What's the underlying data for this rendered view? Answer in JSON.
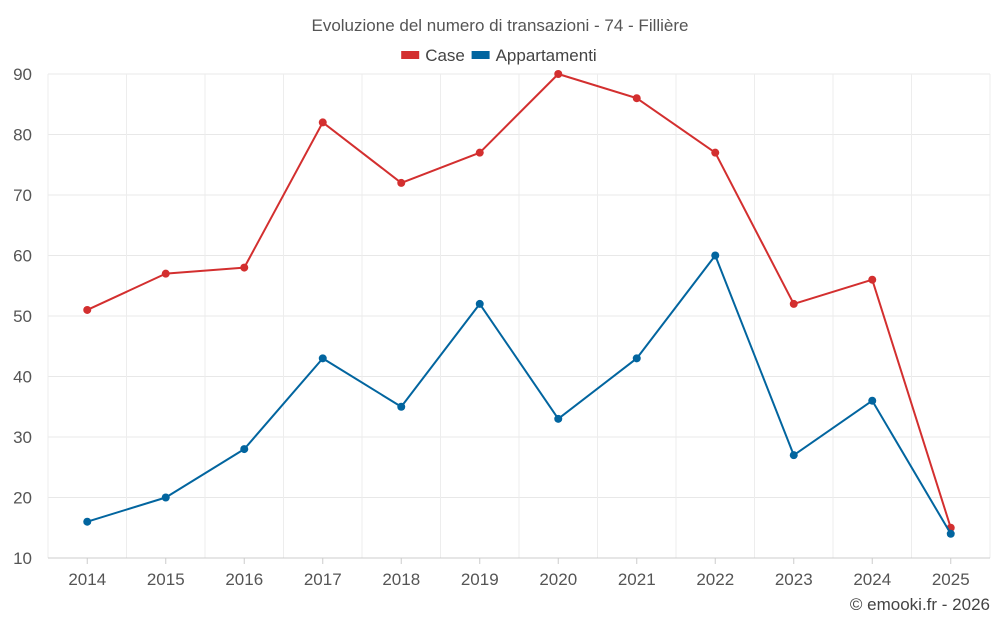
{
  "chart_data": {
    "type": "line",
    "title": "Evoluzione del numero di transazioni - 74 - Fillière",
    "xlabel": "",
    "ylabel": "",
    "categories": [
      "2014",
      "2015",
      "2016",
      "2017",
      "2018",
      "2019",
      "2020",
      "2021",
      "2022",
      "2023",
      "2024",
      "2025"
    ],
    "ylim": [
      10,
      90
    ],
    "yticks": [
      10,
      20,
      30,
      40,
      50,
      60,
      70,
      80,
      90
    ],
    "grid": true,
    "legend": "top-center",
    "series": [
      {
        "name": "Case",
        "color": "#d32f2f",
        "values": [
          51,
          57,
          58,
          82,
          72,
          77,
          90,
          86,
          77,
          52,
          56,
          15
        ]
      },
      {
        "name": "Appartamenti",
        "color": "#02659f",
        "values": [
          16,
          20,
          28,
          43,
          35,
          52,
          33,
          43,
          60,
          27,
          36,
          14
        ]
      }
    ],
    "credit": "© emooki.fr - 2026"
  }
}
